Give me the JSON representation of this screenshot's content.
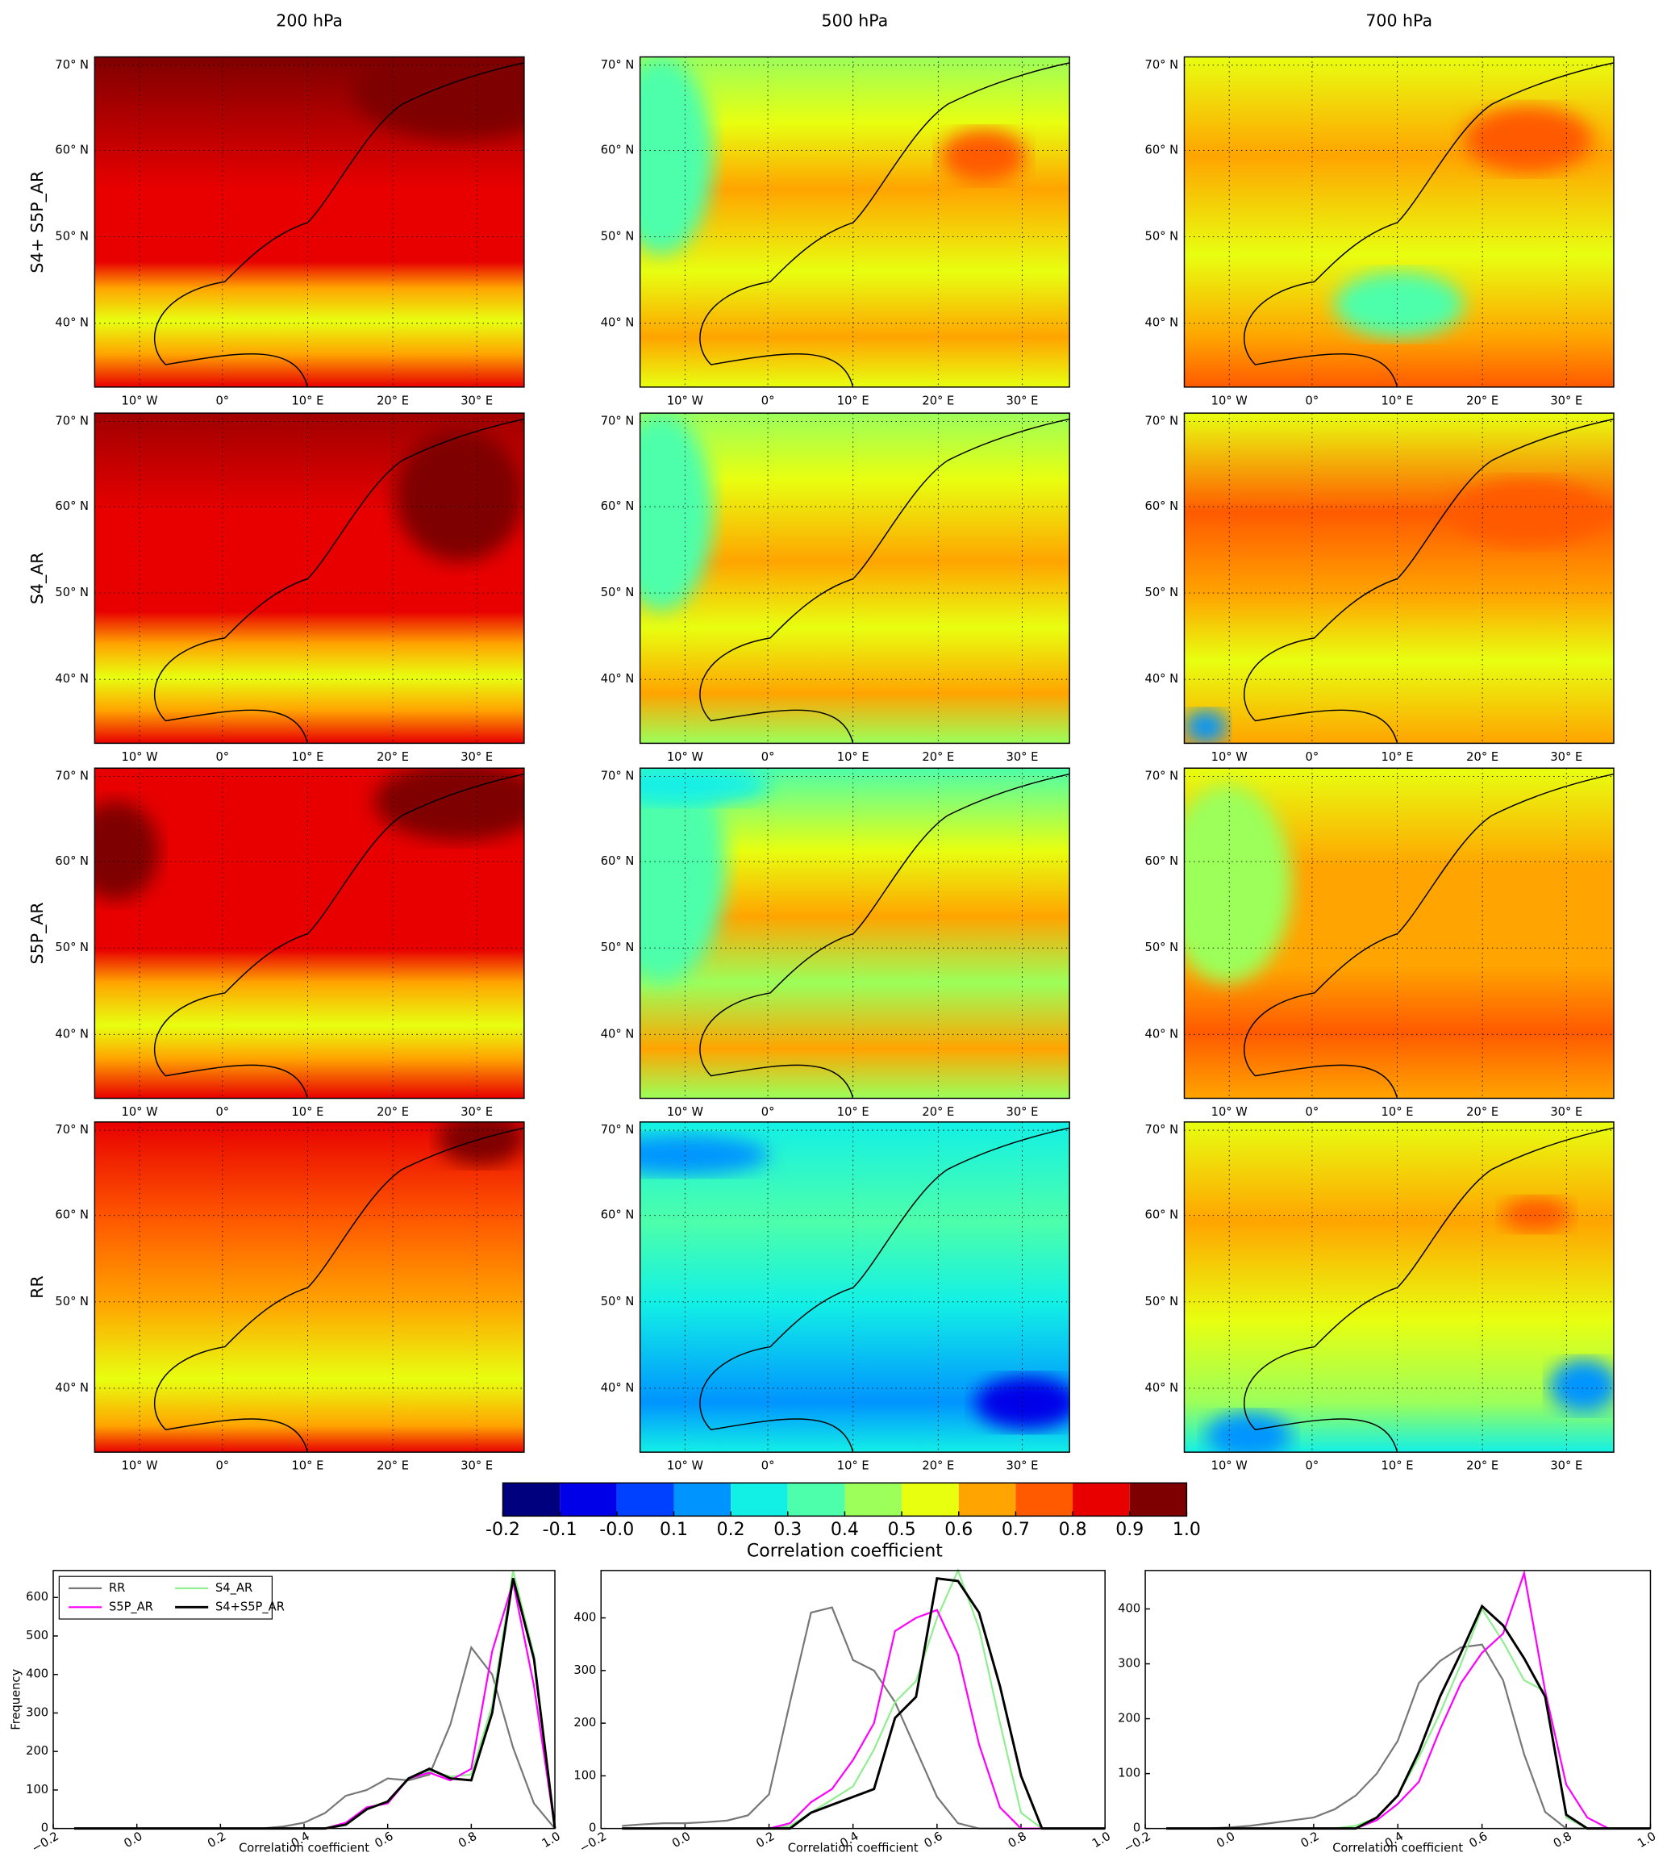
{
  "maps": {
    "column_titles": [
      "200 hPa",
      "500 hPa",
      "700 hPa"
    ],
    "row_labels": [
      "S4+ S5P_AR",
      "S4_AR",
      "S5P_AR",
      "RR"
    ],
    "lat_labels": [
      "70° N",
      "60° N",
      "50° N",
      "40° N"
    ],
    "lon_labels": [
      "10° W",
      "0°",
      "10° E",
      "20° E",
      "30° E"
    ]
  },
  "colorbar": {
    "label": "Correlation coefficient",
    "colors": [
      "#00007f",
      "#0000e8",
      "#0040ff",
      "#0094ff",
      "#12f0e6",
      "#4dffaa",
      "#9cff5a",
      "#e8ff10",
      "#ffa400",
      "#ff5a00",
      "#e80000",
      "#7f0000"
    ],
    "ticks": [
      -0.2,
      -0.1,
      {
        "value": 0,
        "label": "-0.0"
      },
      0.1,
      0.2,
      0.3,
      0.4,
      0.5,
      0.6,
      0.7,
      0.8,
      0.9,
      {
        "value": 1,
        "label": "1.0"
      }
    ]
  },
  "chart_data": [
    {
      "type": "line",
      "x_label": "Correlation coefficient",
      "y_label": "Frequency",
      "legend": "upper left",
      "x": [
        -0.15,
        -0.1,
        -0.05,
        0,
        0.05,
        0.1,
        0.15,
        0.2,
        0.25,
        0.3,
        0.35,
        0.4,
        0.45,
        0.5,
        0.55,
        0.6,
        0.65,
        0.7,
        0.75,
        0.8,
        0.85,
        0.9,
        0.95,
        1.0
      ],
      "xlim": [
        -0.2,
        1.0
      ],
      "xticks": [
        {
          "value": -0.2,
          "label": "−0.2"
        },
        {
          "value": 0,
          "label": "0.0"
        },
        0.2,
        0.4,
        0.6,
        0.8,
        {
          "value": 1,
          "label": "1.0"
        }
      ],
      "ylim": [
        0,
        670
      ],
      "yticks": [
        0,
        100,
        200,
        300,
        400,
        500,
        600
      ],
      "series": [
        {
          "name": "RR",
          "color": "#777777",
          "values": [
            0,
            0,
            0,
            0,
            0,
            0,
            0,
            0,
            0,
            0,
            5,
            15,
            40,
            85,
            100,
            130,
            125,
            140,
            270,
            470,
            400,
            210,
            65,
            0
          ]
        },
        {
          "name": "S4_AR",
          "color": "#90ee90",
          "values": [
            0,
            0,
            0,
            0,
            0,
            0,
            0,
            0,
            0,
            0,
            0,
            0,
            0,
            15,
            50,
            70,
            130,
            150,
            135,
            140,
            320,
            670,
            450,
            0
          ]
        },
        {
          "name": "S5P_AR",
          "color": "#ff00ff",
          "values": [
            0,
            0,
            0,
            0,
            0,
            0,
            0,
            0,
            0,
            0,
            0,
            0,
            0,
            15,
            55,
            65,
            130,
            145,
            125,
            155,
            460,
            640,
            370,
            0
          ]
        },
        {
          "name": "S4+S5P_AR",
          "color": "#000000",
          "values": [
            0,
            0,
            0,
            0,
            0,
            0,
            0,
            0,
            0,
            0,
            0,
            0,
            0,
            10,
            50,
            70,
            130,
            155,
            130,
            125,
            300,
            650,
            440,
            0
          ]
        }
      ]
    },
    {
      "type": "line",
      "x_label": "Correlation coefficient",
      "x": [
        -0.15,
        -0.1,
        -0.05,
        0,
        0.05,
        0.1,
        0.15,
        0.2,
        0.25,
        0.3,
        0.35,
        0.4,
        0.45,
        0.5,
        0.55,
        0.6,
        0.65,
        0.7,
        0.75,
        0.8,
        0.85,
        0.9,
        0.95,
        1.0
      ],
      "xlim": [
        -0.2,
        1.0
      ],
      "xticks": [
        {
          "value": -0.2,
          "label": "−0.2"
        },
        {
          "value": 0,
          "label": "0.0"
        },
        0.2,
        0.4,
        0.6,
        0.8,
        {
          "value": 1,
          "label": "1.0"
        }
      ],
      "ylim": [
        0,
        490
      ],
      "yticks": [
        0,
        100,
        200,
        300,
        400
      ],
      "series": [
        {
          "color": "#777777",
          "values": [
            5,
            8,
            10,
            10,
            12,
            15,
            25,
            65,
            240,
            410,
            420,
            320,
            300,
            240,
            150,
            60,
            10,
            0,
            0,
            0,
            0,
            0,
            0,
            0
          ]
        },
        {
          "color": "#90ee90",
          "values": [
            0,
            0,
            0,
            0,
            0,
            0,
            0,
            0,
            5,
            30,
            55,
            80,
            150,
            240,
            280,
            400,
            490,
            380,
            200,
            30,
            0,
            0,
            0,
            0
          ]
        },
        {
          "color": "#ff00ff",
          "values": [
            0,
            0,
            0,
            0,
            0,
            0,
            0,
            0,
            10,
            50,
            75,
            130,
            200,
            375,
            400,
            415,
            330,
            160,
            40,
            0,
            0,
            0,
            0,
            0
          ]
        },
        {
          "color": "#000000",
          "values": [
            0,
            0,
            0,
            0,
            0,
            0,
            0,
            0,
            0,
            30,
            45,
            60,
            75,
            210,
            250,
            475,
            470,
            410,
            270,
            100,
            0,
            0,
            0,
            0
          ]
        }
      ]
    },
    {
      "type": "line",
      "x_label": "Correlation coefficient",
      "x": [
        -0.15,
        -0.1,
        -0.05,
        0,
        0.05,
        0.1,
        0.15,
        0.2,
        0.25,
        0.3,
        0.35,
        0.4,
        0.45,
        0.5,
        0.55,
        0.6,
        0.65,
        0.7,
        0.75,
        0.8,
        0.85,
        0.9,
        0.95,
        1.0
      ],
      "xlim": [
        -0.2,
        1.0
      ],
      "xticks": [
        {
          "value": -0.2,
          "label": "−0.2"
        },
        {
          "value": 0,
          "label": "0.0"
        },
        0.2,
        0.4,
        0.6,
        0.8,
        {
          "value": 1,
          "label": "1.0"
        }
      ],
      "ylim": [
        0,
        470
      ],
      "yticks": [
        0,
        100,
        200,
        300,
        400
      ],
      "series": [
        {
          "color": "#777777",
          "values": [
            0,
            0,
            0,
            2,
            5,
            10,
            15,
            20,
            35,
            60,
            100,
            160,
            265,
            305,
            330,
            335,
            270,
            135,
            30,
            0,
            0,
            0,
            0,
            0
          ]
        },
        {
          "color": "#90ee90",
          "values": [
            0,
            0,
            0,
            0,
            0,
            0,
            0,
            0,
            0,
            5,
            20,
            60,
            130,
            210,
            300,
            400,
            340,
            270,
            250,
            20,
            0,
            0,
            0,
            0
          ]
        },
        {
          "color": "#ff00ff",
          "values": [
            0,
            0,
            0,
            0,
            0,
            0,
            0,
            0,
            0,
            0,
            15,
            45,
            85,
            180,
            265,
            320,
            355,
            465,
            250,
            80,
            20,
            0,
            0,
            0
          ]
        },
        {
          "color": "#000000",
          "values": [
            0,
            0,
            0,
            0,
            0,
            0,
            0,
            0,
            0,
            0,
            20,
            60,
            140,
            240,
            320,
            405,
            370,
            310,
            240,
            25,
            0,
            0,
            0,
            0
          ]
        }
      ]
    }
  ]
}
